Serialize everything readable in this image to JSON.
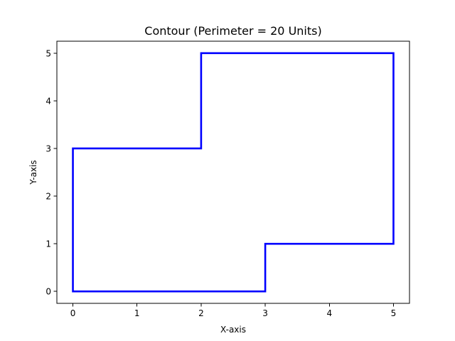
{
  "chart_data": {
    "type": "line",
    "title": "Contour (Perimeter = 20 Units)",
    "xlabel": "X-axis",
    "ylabel": "Y-axis",
    "xlim": [
      -0.25,
      5.25
    ],
    "ylim": [
      -0.25,
      5.25
    ],
    "xticks": [
      0,
      1,
      2,
      3,
      4,
      5
    ],
    "yticks": [
      0,
      1,
      2,
      3,
      4,
      5
    ],
    "xtick_labels": [
      "0",
      "1",
      "2",
      "3",
      "4",
      "5"
    ],
    "ytick_labels": [
      "0",
      "1",
      "2",
      "3",
      "4",
      "5"
    ],
    "grid": false,
    "series": [
      {
        "color": "#0000ff",
        "x": [
          0,
          3,
          3,
          5,
          5,
          2,
          2,
          0,
          0
        ],
        "y": [
          0,
          0,
          1,
          1,
          5,
          5,
          3,
          3,
          0
        ]
      }
    ]
  }
}
